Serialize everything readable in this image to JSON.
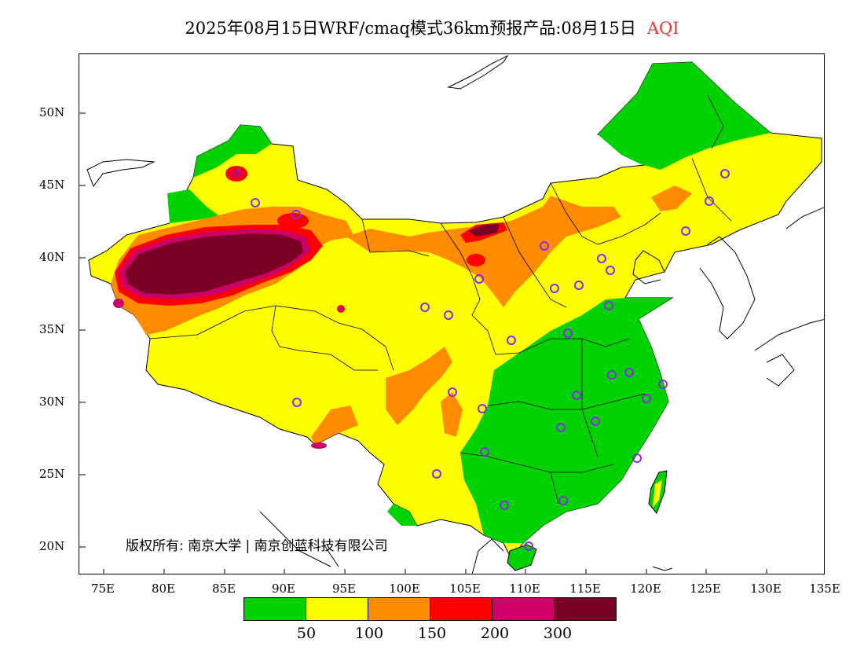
{
  "title": {
    "main": "2025年08月15日WRF/cmaq模式36km预报产品:08月15日",
    "variable": "AQI"
  },
  "axes": {
    "y_ticks": [
      "50N",
      "45N",
      "40N",
      "35N",
      "30N",
      "25N",
      "20N"
    ],
    "x_ticks": [
      "75E",
      "80E",
      "85E",
      "90E",
      "95E",
      "100E",
      "105E",
      "110E",
      "115E",
      "120E",
      "125E",
      "130E",
      "135E"
    ]
  },
  "copyright": "版权所有: 南京大学 | 南京创蓝科技有限公司",
  "legend": {
    "colors": [
      "#00d200",
      "#ffff00",
      "#ff8c00",
      "#ff0000",
      "#cc0066",
      "#7a0026"
    ],
    "labels": [
      "50",
      "100",
      "150",
      "200",
      "300"
    ]
  },
  "colors": {
    "good": "#00d200",
    "moderate": "#ffff00",
    "usg": "#ff8c00",
    "unhealthy": "#ff0000",
    "very_unhealthy": "#cc0066",
    "hazardous": "#7a0026",
    "site_marker": "#8a2be2"
  }
}
